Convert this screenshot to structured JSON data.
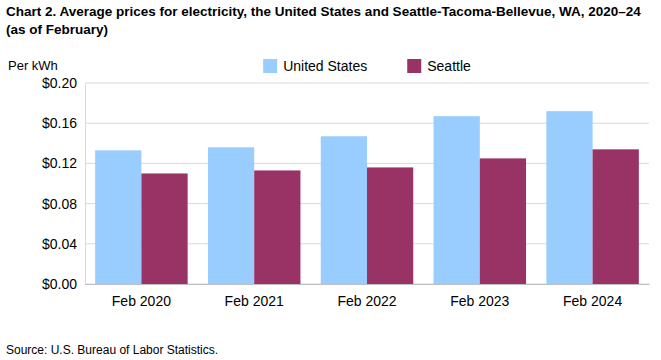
{
  "chart_data": {
    "type": "bar",
    "title": "Chart 2. Average prices for electricity, the United States and Seattle-Tacoma-Bellevue, WA, 2020–24 (as of February)",
    "y_label": "Per kWh",
    "source": "Source: U.S. Bureau of Labor Statistics.",
    "categories": [
      "Feb 2020",
      "Feb 2021",
      "Feb 2022",
      "Feb 2023",
      "Feb 2024"
    ],
    "series": [
      {
        "name": "United States",
        "color": "#99ccff",
        "values": [
          0.133,
          0.136,
          0.147,
          0.167,
          0.172
        ]
      },
      {
        "name": "Seattle",
        "color": "#993366",
        "values": [
          0.11,
          0.113,
          0.116,
          0.125,
          0.134
        ]
      }
    ],
    "ylim": [
      0,
      0.2
    ],
    "yticks": [
      {
        "value": 0,
        "label": "$0.00"
      },
      {
        "value": 0.04,
        "label": "$0.04"
      },
      {
        "value": 0.08,
        "label": "$0.08"
      },
      {
        "value": 0.12,
        "label": "$0.12"
      },
      {
        "value": 0.16,
        "label": "$0.16"
      },
      {
        "value": 0.2,
        "label": "$0.20"
      }
    ],
    "grid": true,
    "legend": "top"
  }
}
